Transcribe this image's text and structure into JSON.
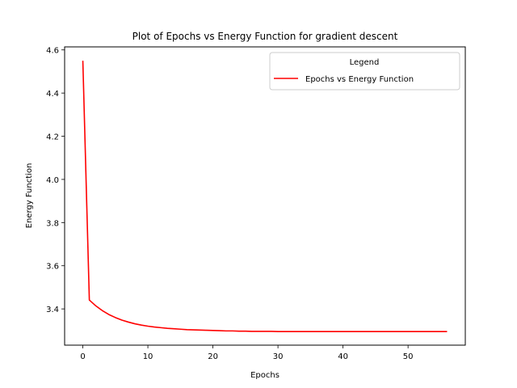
{
  "chart_data": {
    "type": "line",
    "title": "Plot of Epochs vs Energy Function for gradient descent",
    "xlabel": "Epochs",
    "ylabel": "Energy Function",
    "xlim": [
      -2.8,
      58.8
    ],
    "ylim": [
      3.232,
      4.614
    ],
    "xticks": [
      0,
      10,
      20,
      30,
      40,
      50
    ],
    "xtick_labels": [
      "0",
      "10",
      "20",
      "30",
      "40",
      "50"
    ],
    "yticks": [
      3.4,
      3.6,
      3.8,
      4.0,
      4.2,
      4.4,
      4.6
    ],
    "ytick_labels": [
      "3.4",
      "3.6",
      "3.8",
      "4.0",
      "4.2",
      "4.4",
      "4.6"
    ],
    "grid": false,
    "legend": {
      "title": "Legend",
      "placement": "top-right",
      "entries": [
        "Epochs vs Energy Function"
      ]
    },
    "series": [
      {
        "name": "Epochs vs Energy Function",
        "color": "#ff0000",
        "x": [
          0,
          1,
          2,
          3,
          4,
          5,
          6,
          7,
          8,
          9,
          10,
          11,
          12,
          13,
          14,
          15,
          16,
          17,
          18,
          19,
          20,
          21,
          22,
          23,
          24,
          25,
          26,
          27,
          28,
          29,
          30,
          31,
          32,
          33,
          34,
          35,
          36,
          37,
          38,
          39,
          40,
          41,
          42,
          43,
          44,
          45,
          46,
          47,
          48,
          49,
          50,
          51,
          52,
          53,
          54,
          55,
          56
        ],
        "y": [
          4.55,
          3.441,
          3.414,
          3.392,
          3.374,
          3.36,
          3.348,
          3.339,
          3.331,
          3.325,
          3.32,
          3.316,
          3.313,
          3.31,
          3.308,
          3.306,
          3.304,
          3.303,
          3.302,
          3.301,
          3.3,
          3.299,
          3.298,
          3.298,
          3.297,
          3.297,
          3.296,
          3.296,
          3.296,
          3.296,
          3.295,
          3.295,
          3.295,
          3.295,
          3.295,
          3.295,
          3.295,
          3.295,
          3.295,
          3.295,
          3.295,
          3.295,
          3.295,
          3.295,
          3.295,
          3.295,
          3.295,
          3.295,
          3.295,
          3.295,
          3.295,
          3.295,
          3.295,
          3.295,
          3.295,
          3.295,
          3.295
        ]
      }
    ]
  }
}
